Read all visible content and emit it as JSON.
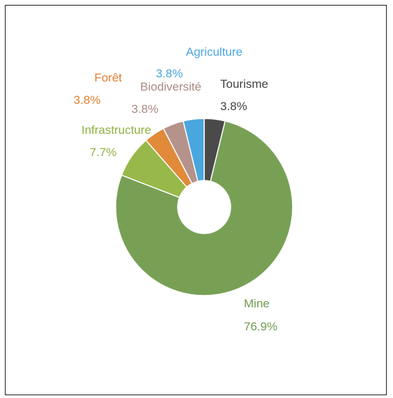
{
  "chart_data": {
    "type": "pie",
    "donut": true,
    "title": "",
    "legend": "none",
    "slices": [
      {
        "name": "Tourisme",
        "value": 3.8,
        "label": "3.8%",
        "color": "#4a4a4a",
        "label_color": "#404040"
      },
      {
        "name": "Mine",
        "value": 76.9,
        "label": "76.9%",
        "color": "#77a055",
        "label_color": "#6f9a4f"
      },
      {
        "name": "Infrastructure",
        "value": 7.7,
        "label": "7.7%",
        "color": "#98b849",
        "label_color": "#8fb042"
      },
      {
        "name": "Forêt",
        "value": 3.8,
        "label": "3.8%",
        "color": "#e08a3a",
        "label_color": "#e07f2e"
      },
      {
        "name": "Biodiversité",
        "value": 3.8,
        "label": "3.8%",
        "color": "#b5938a",
        "label_color": "#a88a80"
      },
      {
        "name": "Agriculture",
        "value": 3.8,
        "label": "3.8%",
        "color": "#4aa6de",
        "label_color": "#4aa6de"
      }
    ]
  }
}
